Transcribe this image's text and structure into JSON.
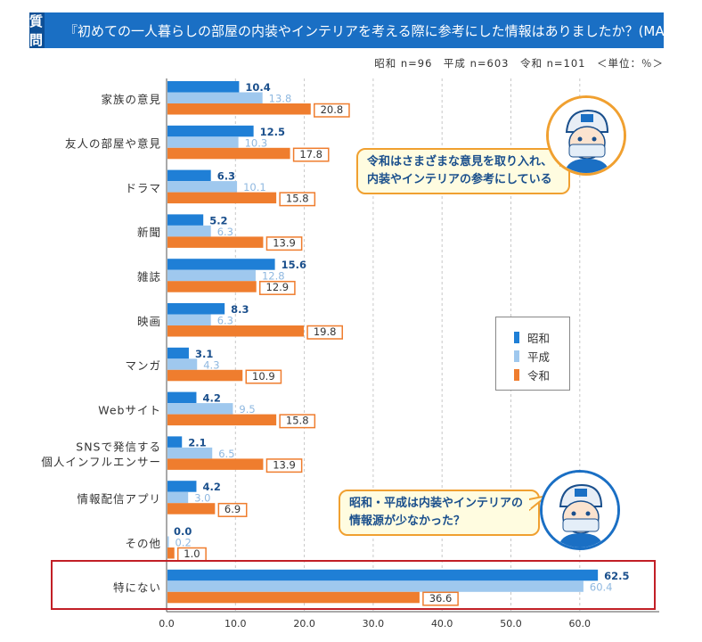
{
  "header": {
    "question_label": "質問",
    "title": "『初めての一人暮らしの部屋の内装やインテリアを考える際に参考にした情報はありましたか？(MA)』"
  },
  "meta": {
    "text": "昭和 n=96　平成 n=603　令和 n=101　＜単位：％＞"
  },
  "legend": {
    "items": [
      "昭和",
      "平成",
      "令和"
    ]
  },
  "bubbles": {
    "reiwa_line1": "令和はさまざまな意見を取り入れ、",
    "reiwa_line2": "内装やインテリアの参考にしている",
    "showa_line1": "昭和・平成は内装やインテリアの",
    "showa_line2": "情報源が少なかった？"
  },
  "colors": {
    "showa": "#1f7fd6",
    "heisei": "#9fc8ee",
    "reiwa": "#ef7d2e",
    "header": "#1a6fc4",
    "highlight": "#c21f26"
  },
  "chart_data": {
    "type": "bar",
    "orientation": "horizontal",
    "categories": [
      "家族の意見",
      "友人の部屋や意見",
      "ドラマ",
      "新聞",
      "雑誌",
      "映画",
      "マンガ",
      "Webサイト",
      "SNSで発信する\n個人インフルエンサー",
      "情報配信アプリ",
      "その他",
      "特にない"
    ],
    "category_lines": [
      [
        "家族の意見"
      ],
      [
        "友人の部屋や意見"
      ],
      [
        "ドラマ"
      ],
      [
        "新聞"
      ],
      [
        "雑誌"
      ],
      [
        "映画"
      ],
      [
        "マンガ"
      ],
      [
        "Webサイト"
      ],
      [
        "SNSで発信する",
        "個人インフルエンサー"
      ],
      [
        "情報配信アプリ"
      ],
      [
        "その他"
      ],
      [
        "特にない"
      ]
    ],
    "series": [
      {
        "name": "昭和",
        "values": [
          10.4,
          12.5,
          6.3,
          5.2,
          15.6,
          8.3,
          3.1,
          4.2,
          2.1,
          4.2,
          0.0,
          62.5
        ]
      },
      {
        "name": "平成",
        "values": [
          13.8,
          10.3,
          10.1,
          6.3,
          12.8,
          6.3,
          4.3,
          9.5,
          6.5,
          3.0,
          0.2,
          60.4
        ]
      },
      {
        "name": "令和",
        "values": [
          20.8,
          17.8,
          15.8,
          13.9,
          12.9,
          19.8,
          10.9,
          15.8,
          13.9,
          6.9,
          1.0,
          36.6
        ]
      }
    ],
    "xlim": [
      0,
      70
    ],
    "ticks": [
      "0.0",
      "10.0",
      "20.0",
      "30.0",
      "40.0",
      "50.0",
      "60.0"
    ],
    "tick_values": [
      0,
      10,
      20,
      30,
      40,
      50,
      60
    ],
    "value_labels": [
      [
        "10.4",
        "12.5",
        "6.3",
        "5.2",
        "15.6",
        "8.3",
        "3.1",
        "4.2",
        "2.1",
        "4.2",
        "0.0",
        "62.5"
      ],
      [
        "13.8",
        "10.3",
        "10.1",
        "6.3",
        "12.8",
        "6.3",
        "4.3",
        "9.5",
        "6.5",
        "3.0",
        "0.2",
        "60.4"
      ],
      [
        "20.8",
        "17.8",
        "15.8",
        "13.9",
        "12.9",
        "19.8",
        "10.9",
        "15.8",
        "13.9",
        "6.9",
        "1.0",
        "36.6"
      ]
    ]
  }
}
